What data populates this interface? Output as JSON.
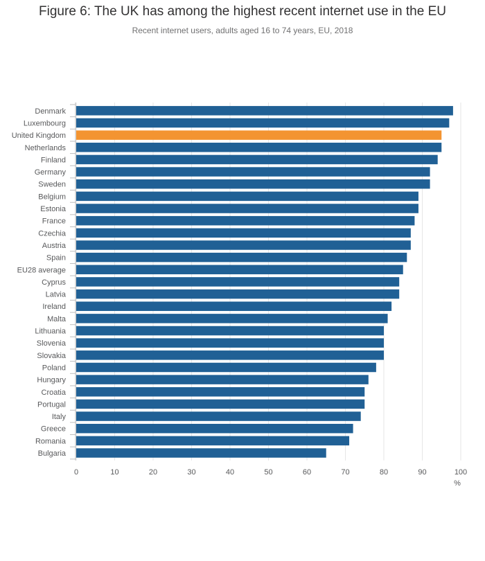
{
  "chart_data": {
    "type": "bar",
    "orientation": "horizontal",
    "title": "Figure 6: The UK has among the highest recent internet use in the EU",
    "subtitle": "Recent internet users, adults aged 16 to 74 years, EU, 2018",
    "xlabel": "%",
    "xlim": [
      0,
      100
    ],
    "xticks": [
      0,
      10,
      20,
      30,
      40,
      50,
      60,
      70,
      80,
      90,
      100
    ],
    "grid": true,
    "categories": [
      "Denmark",
      "Luxembourg",
      "United Kingdom",
      "Netherlands",
      "Finland",
      "Germany",
      "Sweden",
      "Belgium",
      "Estonia",
      "France",
      "Czechia",
      "Austria",
      "Spain",
      "EU28 average",
      "Cyprus",
      "Latvia",
      "Ireland",
      "Malta",
      "Lithuania",
      "Slovenia",
      "Slovakia",
      "Poland",
      "Hungary",
      "Croatia",
      "Portugal",
      "Italy",
      "Greece",
      "Romania",
      "Bulgaria"
    ],
    "values": [
      98,
      97,
      95,
      95,
      94,
      92,
      92,
      89,
      89,
      88,
      87,
      87,
      86,
      85,
      84,
      84,
      82,
      81,
      80,
      80,
      80,
      78,
      76,
      75,
      75,
      74,
      72,
      71,
      65
    ],
    "highlight": "United Kingdom",
    "colors": {
      "default": "#206095",
      "highlight": "#f39431",
      "grid": "#e6e6e6",
      "axis": "#bcbcbd"
    }
  }
}
